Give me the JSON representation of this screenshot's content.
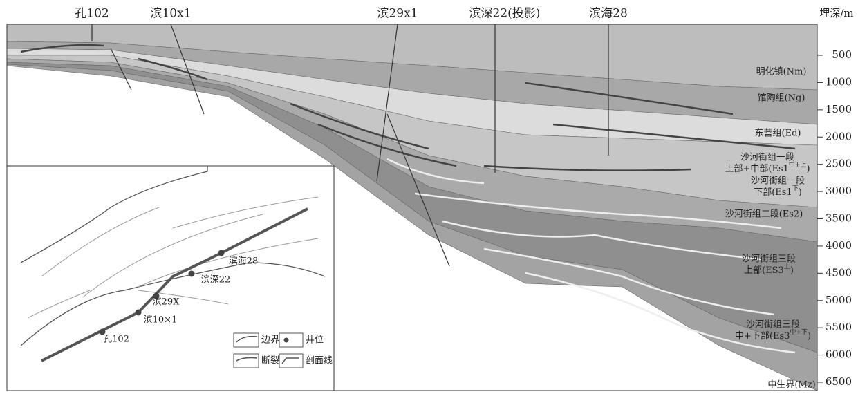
{
  "section": {
    "depth_label": "埋深/m",
    "depth_ticks": [
      500,
      1000,
      1500,
      2000,
      2500,
      3000,
      3500,
      4000,
      4500,
      5000,
      5500,
      6000,
      6500
    ],
    "wells": [
      "孔102",
      "滨10x1",
      "滨29x1",
      "滨深22(投影)",
      "滨海28"
    ],
    "formations": [
      {
        "lines": [
          "明化镇(Nm)"
        ]
      },
      {
        "lines": [
          "馆陶组(Ng)"
        ]
      },
      {
        "lines": [
          "东营组(Ed)"
        ]
      },
      {
        "lines": [
          "沙河街组一段",
          {
            "text": "上部+中部(Es1",
            "sup": "中+上",
            "tail": ")"
          }
        ]
      },
      {
        "lines": [
          "沙河街组一段",
          {
            "text": "下部(Es1",
            "sup": "下",
            "tail": ")"
          }
        ]
      },
      {
        "lines": [
          "沙河街组二段(Es2)"
        ]
      },
      {
        "lines": [
          "沙河街组三段",
          {
            "text": "上部(ES3",
            "sup": "上",
            "tail": ")"
          }
        ]
      },
      {
        "lines": [
          "沙河街组三段",
          {
            "text": "中+下部(Es3",
            "sup": "中+下",
            "tail": ")"
          }
        ]
      },
      {
        "lines": [
          "中生界(Mz)"
        ]
      }
    ]
  },
  "inset": {
    "wells": [
      "孔102",
      "滨10×1",
      "滨29X",
      "滨深22",
      "滨海28"
    ],
    "legend": [
      "边界",
      "井位",
      "断裂",
      "剖面线"
    ]
  }
}
